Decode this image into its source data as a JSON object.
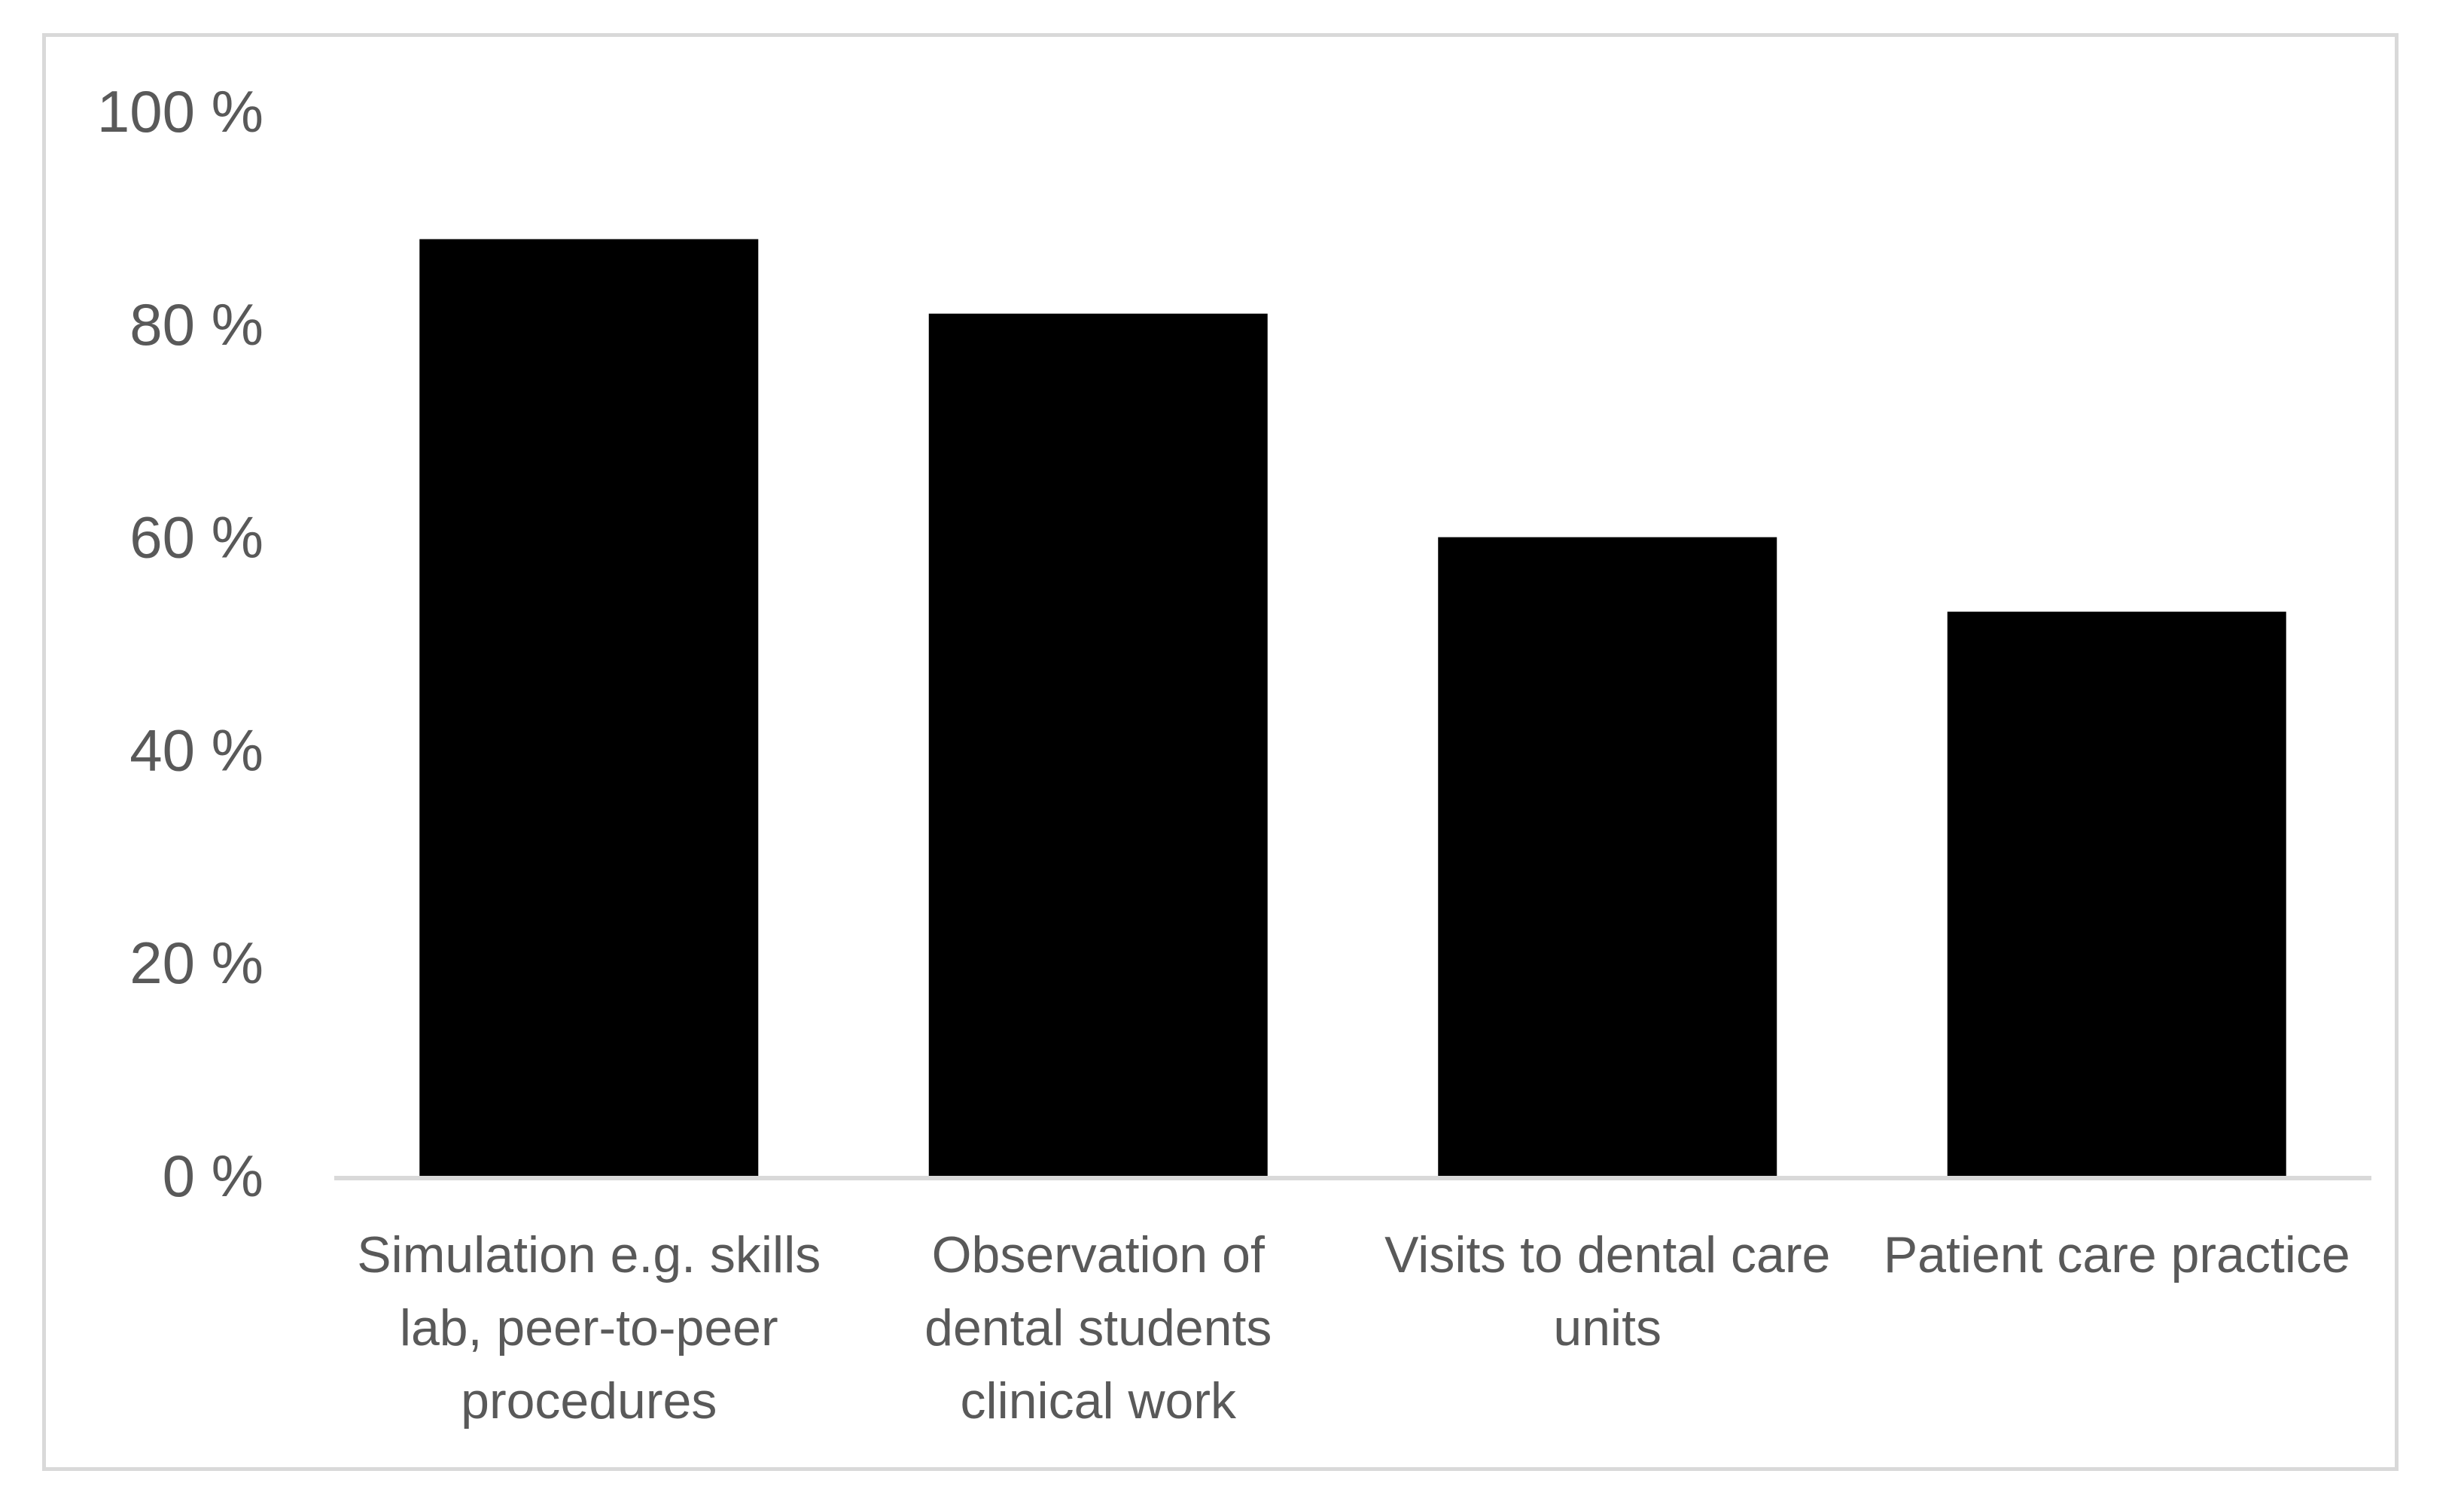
{
  "chart_data": {
    "type": "bar",
    "categories": [
      [
        "Simulation e.g. skills",
        "lab, peer-to-peer",
        "procedures"
      ],
      [
        "Observation of",
        "dental students",
        "clinical work"
      ],
      [
        "Visits to dental care",
        "units"
      ],
      [
        "Patient care practice"
      ]
    ],
    "values": [
      88,
      81,
      60,
      53
    ],
    "ylim": [
      0,
      100
    ],
    "yticks": [
      0,
      20,
      40,
      60,
      80,
      100
    ],
    "ytick_suffix": " %",
    "bar_color": "#000000",
    "axis_color": "#d9d9d9",
    "text_color": "#595959",
    "grid": false,
    "legend": "none"
  }
}
